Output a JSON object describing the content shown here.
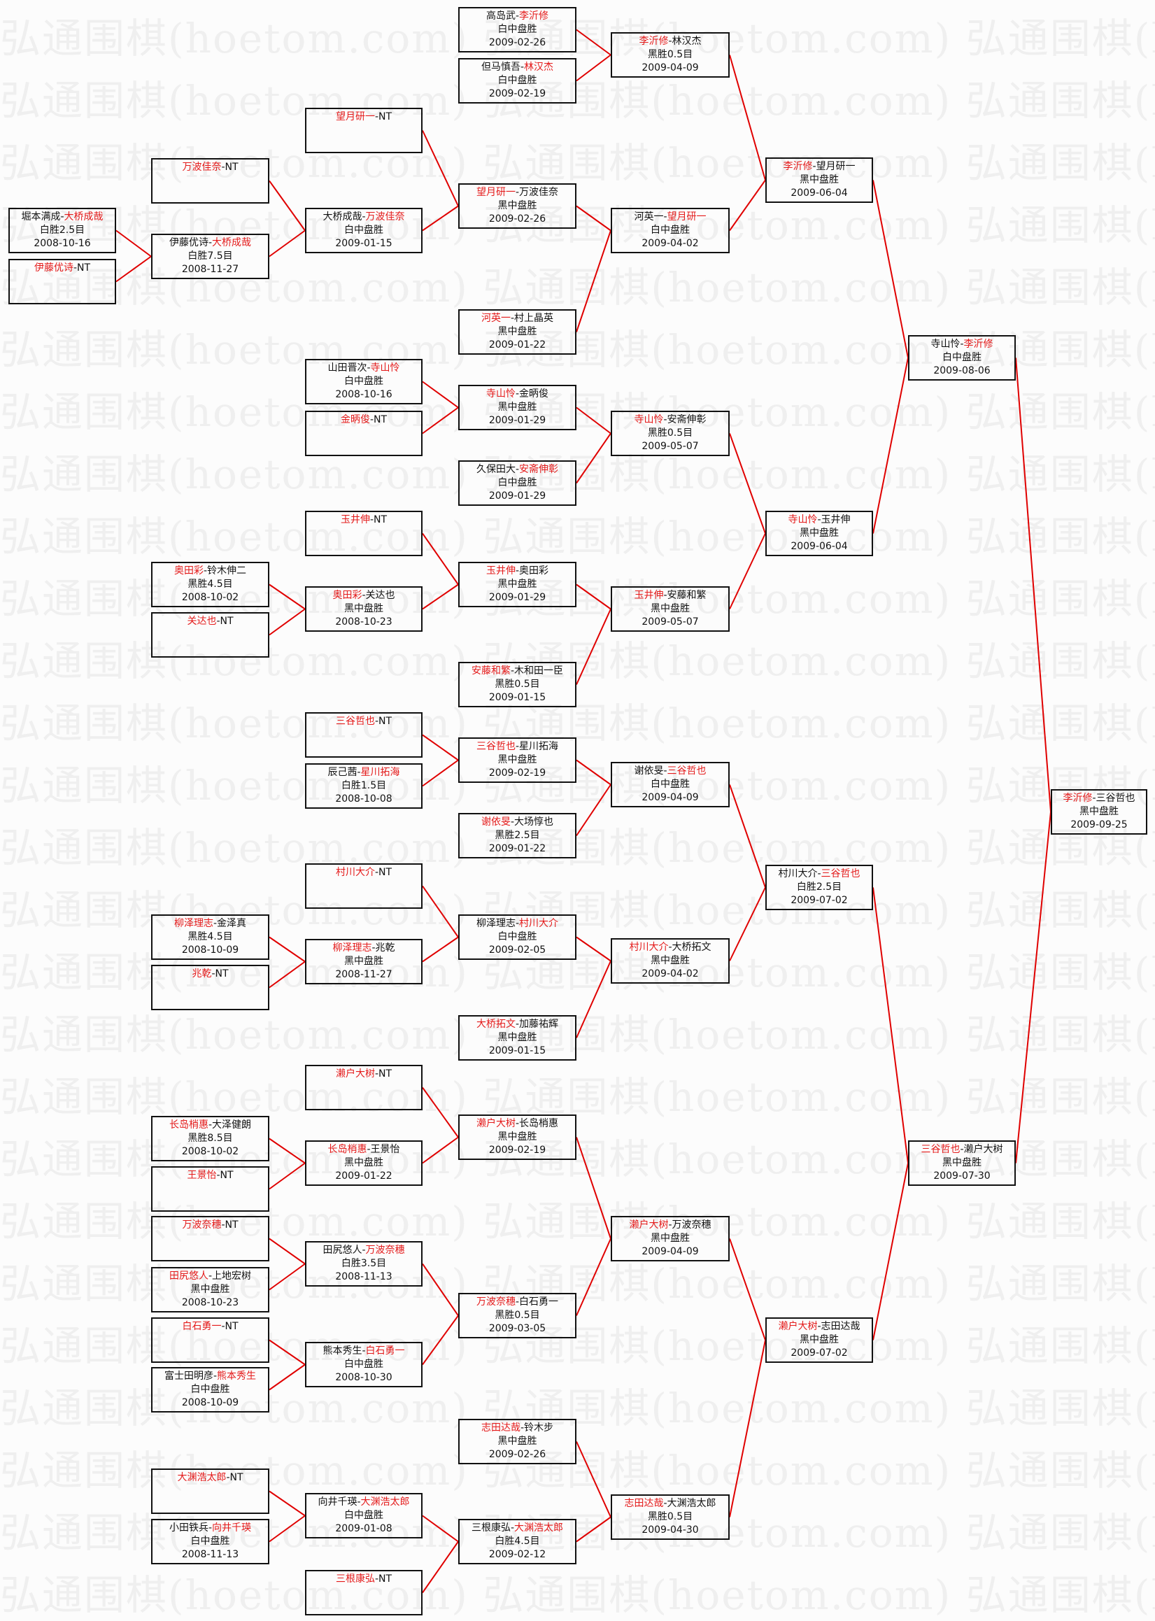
{
  "watermark": "弘通围棋(hoetom.com)",
  "colors": {
    "winner": "#e41a1a",
    "connector": "#e00000",
    "border": "#111111"
  },
  "separator": "-",
  "matches": [
    {
      "p1": "李沂修",
      "p2": "三谷哲也",
      "winner": 1,
      "result": "黑中盘胜",
      "date": "2009-09-25"
    },
    {
      "p1": "寺山怜",
      "p2": "李沂修",
      "winner": 2,
      "result": "白中盘胜",
      "date": "2009-08-06"
    },
    {
      "p1": "三谷哲也",
      "p2": "濑户大树",
      "winner": 1,
      "result": "黑中盘胜",
      "date": "2009-07-30"
    },
    {
      "p1": "李沂修",
      "p2": "望月研一",
      "winner": 1,
      "result": "黑中盘胜",
      "date": "2009-06-04"
    },
    {
      "p1": "寺山怜",
      "p2": "玉井伸",
      "winner": 1,
      "result": "黑中盘胜",
      "date": "2009-06-04"
    },
    {
      "p1": "村川大介",
      "p2": "三谷哲也",
      "winner": 2,
      "result": "白胜2.5目",
      "date": "2009-07-02"
    },
    {
      "p1": "濑户大树",
      "p2": "志田达哉",
      "winner": 1,
      "result": "黑中盘胜",
      "date": "2009-07-02"
    },
    {
      "p1": "李沂修",
      "p2": "林汉杰",
      "winner": 1,
      "result": "黑胜0.5目",
      "date": "2009-04-09"
    },
    {
      "p1": "河英一",
      "p2": "望月研一",
      "winner": 2,
      "result": "白中盘胜",
      "date": "2009-04-02"
    },
    {
      "p1": "寺山怜",
      "p2": "安斋伸彰",
      "winner": 1,
      "result": "黑胜0.5目",
      "date": "2009-05-07"
    },
    {
      "p1": "玉井伸",
      "p2": "安藤和繁",
      "winner": 1,
      "result": "黑中盘胜",
      "date": "2009-05-07"
    },
    {
      "p1": "谢依旻",
      "p2": "三谷哲也",
      "winner": 2,
      "result": "白中盘胜",
      "date": "2009-04-09"
    },
    {
      "p1": "村川大介",
      "p2": "大桥拓文",
      "winner": 1,
      "result": "黑中盘胜",
      "date": "2009-04-02"
    },
    {
      "p1": "濑户大树",
      "p2": "万波奈穗",
      "winner": 1,
      "result": "黑中盘胜",
      "date": "2009-04-09"
    },
    {
      "p1": "志田达哉",
      "p2": "大渊浩太郎",
      "winner": 1,
      "result": "黑胜0.5目",
      "date": "2009-04-30"
    },
    {
      "p1": "高岛武",
      "p2": "李沂修",
      "winner": 2,
      "result": "白中盘胜",
      "date": "2009-02-26"
    },
    {
      "p1": "但马慎吾",
      "p2": "林汉杰",
      "winner": 2,
      "result": "白中盘胜",
      "date": "2009-02-19"
    },
    {
      "p1": "望月研一",
      "p2": "万波佳奈",
      "winner": 1,
      "result": "黑中盘胜",
      "date": "2009-02-26"
    },
    {
      "p1": "河英一",
      "p2": "村上晶英",
      "winner": 1,
      "result": "黑中盘胜",
      "date": "2009-01-22"
    },
    {
      "p1": "寺山怜",
      "p2": "金昞俊",
      "winner": 1,
      "result": "黑中盘胜",
      "date": "2009-01-29"
    },
    {
      "p1": "久保田大",
      "p2": "安斋伸彰",
      "winner": 2,
      "result": "白中盘胜",
      "date": "2009-01-29"
    },
    {
      "p1": "玉井伸",
      "p2": "奥田彩",
      "winner": 1,
      "result": "黑中盘胜",
      "date": "2009-01-29"
    },
    {
      "p1": "安藤和繁",
      "p2": "木和田一臣",
      "winner": 1,
      "result": "黑胜0.5目",
      "date": "2009-01-15"
    },
    {
      "p1": "三谷哲也",
      "p2": "星川拓海",
      "winner": 1,
      "result": "黑中盘胜",
      "date": "2009-02-19"
    },
    {
      "p1": "谢依旻",
      "p2": "大场惇也",
      "winner": 1,
      "result": "黑胜2.5目",
      "date": "2009-01-22"
    },
    {
      "p1": "柳泽理志",
      "p2": "村川大介",
      "winner": 2,
      "result": "白中盘胜",
      "date": "2009-02-05"
    },
    {
      "p1": "大桥拓文",
      "p2": "加藤祐辉",
      "winner": 1,
      "result": "黑中盘胜",
      "date": "2009-01-15"
    },
    {
      "p1": "濑户大树",
      "p2": "长岛梢惠",
      "winner": 1,
      "result": "黑中盘胜",
      "date": "2009-02-19"
    },
    {
      "p1": "万波奈穗",
      "p2": "白石勇一",
      "winner": 1,
      "result": "黑胜0.5目",
      "date": "2009-03-05"
    },
    {
      "p1": "志田达哉",
      "p2": "铃木步",
      "winner": 1,
      "result": "黑中盘胜",
      "date": "2009-02-26"
    },
    {
      "p1": "三根康弘",
      "p2": "大渊浩太郎",
      "winner": 2,
      "result": "白胜4.5目",
      "date": "2009-02-12"
    },
    {
      "p1": "望月研一",
      "p2": "NT",
      "winner": 1
    },
    {
      "p1": "大桥成哉",
      "p2": "万波佳奈",
      "winner": 2,
      "result": "白中盘胜",
      "date": "2009-01-15"
    },
    {
      "p1": "山田晋次",
      "p2": "寺山怜",
      "winner": 2,
      "result": "白中盘胜",
      "date": "2008-10-16"
    },
    {
      "p1": "金昞俊",
      "p2": "NT",
      "winner": 1
    },
    {
      "p1": "玉井伸",
      "p2": "NT",
      "winner": 1
    },
    {
      "p1": "奥田彩",
      "p2": "关达也",
      "winner": 1,
      "result": "黑中盘胜",
      "date": "2008-10-23"
    },
    {
      "p1": "三谷哲也",
      "p2": "NT",
      "winner": 1
    },
    {
      "p1": "辰己茜",
      "p2": "星川拓海",
      "winner": 2,
      "result": "白胜1.5目",
      "date": "2008-10-08"
    },
    {
      "p1": "村川大介",
      "p2": "NT",
      "winner": 1
    },
    {
      "p1": "柳泽理志",
      "p2": "兆乾",
      "winner": 1,
      "result": "黑中盘胜",
      "date": "2008-11-27"
    },
    {
      "p1": "濑户大树",
      "p2": "NT",
      "winner": 1
    },
    {
      "p1": "长岛梢惠",
      "p2": "王景怡",
      "winner": 1,
      "result": "黑中盘胜",
      "date": "2009-01-22"
    },
    {
      "p1": "田尻悠人",
      "p2": "万波奈穗",
      "winner": 2,
      "result": "白胜3.5目",
      "date": "2008-11-13"
    },
    {
      "p1": "熊本秀生",
      "p2": "白石勇一",
      "winner": 2,
      "result": "白中盘胜",
      "date": "2008-10-30"
    },
    {
      "p1": "向井千瑛",
      "p2": "大渊浩太郎",
      "winner": 2,
      "result": "白中盘胜",
      "date": "2009-01-08"
    },
    {
      "p1": "三根康弘",
      "p2": "NT",
      "winner": 1
    },
    {
      "p1": "万波佳奈",
      "p2": "NT",
      "winner": 1
    },
    {
      "p1": "伊藤优诗",
      "p2": "大桥成哉",
      "winner": 2,
      "result": "白胜7.5目",
      "date": "2008-11-27"
    },
    {
      "p1": "奥田彩",
      "p2": "铃木伸二",
      "winner": 1,
      "result": "黑胜4.5目",
      "date": "2008-10-02"
    },
    {
      "p1": "关达也",
      "p2": "NT",
      "winner": 1
    },
    {
      "p1": "柳泽理志",
      "p2": "金泽真",
      "winner": 1,
      "result": "黑胜4.5目",
      "date": "2008-10-09"
    },
    {
      "p1": "兆乾",
      "p2": "NT",
      "winner": 1
    },
    {
      "p1": "长岛梢惠",
      "p2": "大泽健朗",
      "winner": 1,
      "result": "黑胜8.5目",
      "date": "2008-10-02"
    },
    {
      "p1": "王景怡",
      "p2": "NT",
      "winner": 1
    },
    {
      "p1": "万波奈穗",
      "p2": "NT",
      "winner": 1
    },
    {
      "p1": "田尻悠人",
      "p2": "上地宏树",
      "winner": 1,
      "result": "黑中盘胜",
      "date": "2008-10-23"
    },
    {
      "p1": "白石勇一",
      "p2": "NT",
      "winner": 1
    },
    {
      "p1": "富士田明彦",
      "p2": "熊本秀生",
      "winner": 2,
      "result": "白中盘胜",
      "date": "2008-10-09"
    },
    {
      "p1": "大渊浩太郎",
      "p2": "NT",
      "winner": 1
    },
    {
      "p1": "小田铁兵",
      "p2": "向井千瑛",
      "winner": 2,
      "result": "白中盘胜",
      "date": "2008-11-13"
    },
    {
      "p1": "堀本满成",
      "p2": "大桥成哉",
      "winner": 2,
      "result": "白胜2.5目",
      "date": "2008-10-16"
    },
    {
      "p1": "伊藤优诗",
      "p2": "NT",
      "winner": 1
    }
  ]
}
